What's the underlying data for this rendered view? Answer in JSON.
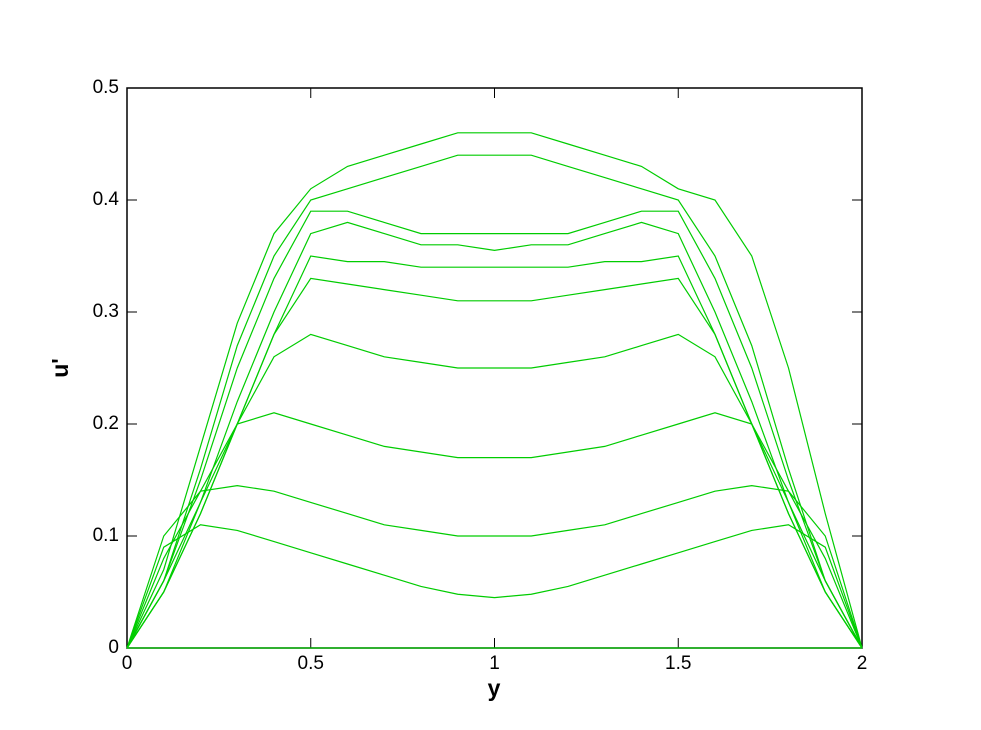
{
  "chart_data": {
    "type": "line",
    "xlabel": "y",
    "ylabel": "u'",
    "x": [
      0,
      0.1,
      0.2,
      0.3,
      0.4,
      0.5,
      0.6,
      0.7,
      0.8,
      0.9,
      1,
      1.1,
      1.2,
      1.3,
      1.4,
      1.5,
      1.6,
      1.7,
      1.8,
      1.9,
      2
    ],
    "xlim": [
      0,
      2
    ],
    "xticks": [
      0,
      0.5,
      1,
      1.5,
      2
    ],
    "ylim": [
      0,
      0.5
    ],
    "yticks": [
      0,
      0.1,
      0.2,
      0.3,
      0.4,
      0.5
    ],
    "series": [
      {
        "color": "#00cc00",
        "values": [
          0,
          0,
          0,
          0,
          0,
          0,
          0,
          0,
          0,
          0,
          0,
          0,
          0,
          0,
          0,
          0,
          0,
          0,
          0,
          0,
          0
        ]
      },
      {
        "color": "#00cc00",
        "values": [
          0,
          0.09,
          0.11,
          0.105,
          0.095,
          0.085,
          0.075,
          0.065,
          0.055,
          0.048,
          0.045,
          0.048,
          0.055,
          0.065,
          0.075,
          0.085,
          0.095,
          0.105,
          0.11,
          0.09,
          0
        ]
      },
      {
        "color": "#00cc00",
        "values": [
          0,
          0.1,
          0.14,
          0.145,
          0.14,
          0.13,
          0.12,
          0.11,
          0.105,
          0.1,
          0.1,
          0.1,
          0.105,
          0.11,
          0.12,
          0.13,
          0.14,
          0.145,
          0.14,
          0.1,
          0
        ]
      },
      {
        "color": "#00cc00",
        "values": [
          0,
          0.08,
          0.14,
          0.2,
          0.21,
          0.2,
          0.19,
          0.18,
          0.175,
          0.17,
          0.17,
          0.17,
          0.175,
          0.18,
          0.19,
          0.2,
          0.21,
          0.2,
          0.14,
          0.08,
          0
        ]
      },
      {
        "color": "#00cc00",
        "values": [
          0,
          0.06,
          0.13,
          0.2,
          0.26,
          0.28,
          0.27,
          0.26,
          0.255,
          0.25,
          0.25,
          0.25,
          0.255,
          0.26,
          0.27,
          0.28,
          0.26,
          0.2,
          0.13,
          0.06,
          0
        ]
      },
      {
        "color": "#00cc00",
        "values": [
          0,
          0.05,
          0.12,
          0.2,
          0.28,
          0.33,
          0.325,
          0.32,
          0.315,
          0.31,
          0.31,
          0.31,
          0.315,
          0.32,
          0.325,
          0.33,
          0.28,
          0.2,
          0.12,
          0.05,
          0
        ]
      },
      {
        "color": "#00cc00",
        "values": [
          0,
          0.05,
          0.12,
          0.2,
          0.28,
          0.35,
          0.345,
          0.345,
          0.34,
          0.34,
          0.34,
          0.34,
          0.34,
          0.345,
          0.345,
          0.35,
          0.28,
          0.2,
          0.12,
          0.05,
          0
        ]
      },
      {
        "color": "#00cc00",
        "values": [
          0,
          0.05,
          0.13,
          0.22,
          0.3,
          0.37,
          0.38,
          0.37,
          0.36,
          0.36,
          0.355,
          0.36,
          0.36,
          0.37,
          0.38,
          0.37,
          0.3,
          0.22,
          0.13,
          0.05,
          0
        ]
      },
      {
        "color": "#00cc00",
        "values": [
          0,
          0.06,
          0.15,
          0.25,
          0.33,
          0.39,
          0.39,
          0.38,
          0.37,
          0.37,
          0.37,
          0.37,
          0.37,
          0.38,
          0.39,
          0.39,
          0.33,
          0.25,
          0.15,
          0.06,
          0
        ]
      },
      {
        "color": "#00cc00",
        "values": [
          0,
          0.06,
          0.16,
          0.27,
          0.35,
          0.4,
          0.41,
          0.42,
          0.43,
          0.44,
          0.44,
          0.44,
          0.43,
          0.42,
          0.41,
          0.4,
          0.35,
          0.27,
          0.16,
          0.06,
          0
        ]
      },
      {
        "color": "#00cc00",
        "values": [
          0,
          0.07,
          0.18,
          0.29,
          0.37,
          0.41,
          0.43,
          0.44,
          0.45,
          0.46,
          0.46,
          0.46,
          0.45,
          0.44,
          0.43,
          0.41,
          0.4,
          0.35,
          0.25,
          0.12,
          0
        ]
      }
    ]
  }
}
